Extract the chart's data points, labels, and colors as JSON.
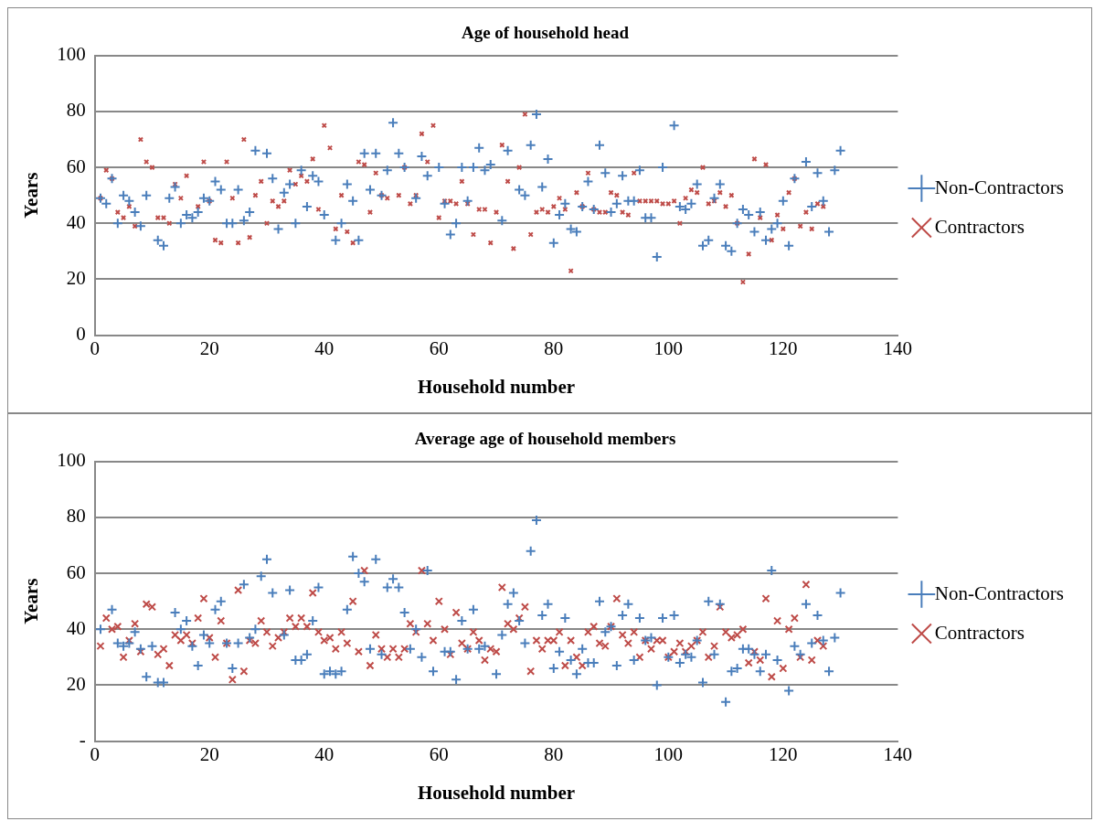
{
  "chart_data": [
    {
      "type": "scatter",
      "title": "Age of household head",
      "xlabel": "Household number",
      "ylabel": "Years",
      "xlim": [
        0,
        140
      ],
      "xticks": [
        0,
        20,
        40,
        60,
        80,
        100,
        120,
        140
      ],
      "ylim": [
        0,
        100
      ],
      "yticks": [
        0,
        20,
        40,
        60,
        80,
        100
      ],
      "grid": "y",
      "legend": "right",
      "series": [
        {
          "name": "Non-Contractors",
          "color": "#4a7ebb",
          "marker": "cross",
          "x": [
            1,
            2,
            3,
            4,
            5,
            6,
            7,
            8,
            9,
            11,
            12,
            13,
            14,
            15,
            16,
            17,
            18,
            19,
            20,
            21,
            22,
            23,
            24,
            25,
            26,
            27,
            28,
            30,
            31,
            32,
            33,
            34,
            35,
            36,
            37,
            38,
            39,
            40,
            42,
            43,
            44,
            45,
            46,
            47,
            48,
            49,
            50,
            51,
            52,
            53,
            54,
            56,
            57,
            58,
            60,
            61,
            62,
            63,
            64,
            65,
            66,
            67,
            68,
            69,
            71,
            72,
            74,
            75,
            76,
            77,
            78,
            79,
            80,
            81,
            82,
            83,
            84,
            85,
            86,
            87,
            88,
            89,
            90,
            91,
            92,
            93,
            94,
            95,
            96,
            97,
            98,
            99,
            101,
            102,
            103,
            104,
            105,
            106,
            107,
            108,
            109,
            110,
            111,
            112,
            113,
            114,
            115,
            116,
            117,
            118,
            119,
            120,
            121,
            122,
            124,
            125,
            126,
            127,
            128,
            129,
            130
          ],
          "values": [
            49,
            47,
            56,
            40,
            50,
            48,
            44,
            39,
            50,
            34,
            32,
            49,
            53,
            40,
            43,
            42,
            44,
            49,
            48,
            55,
            52,
            40,
            40,
            52,
            41,
            44,
            66,
            65,
            56,
            38,
            51,
            54,
            40,
            59,
            46,
            57,
            55,
            43,
            34,
            40,
            54,
            48,
            34,
            65,
            52,
            65,
            50,
            59,
            76,
            65,
            60,
            49,
            64,
            57,
            60,
            47,
            36,
            40,
            60,
            48,
            60,
            67,
            59,
            61,
            41,
            66,
            52,
            50,
            68,
            79,
            53,
            63,
            33,
            43,
            47,
            38,
            37,
            46,
            55,
            45,
            68,
            58,
            44,
            47,
            57,
            48,
            48,
            59,
            42,
            42,
            28,
            60,
            75,
            46,
            45,
            47,
            54,
            32,
            34,
            49,
            54,
            32,
            30,
            40,
            45,
            43,
            37,
            44,
            34,
            38,
            40,
            48,
            32,
            56,
            62,
            46,
            58,
            48,
            37,
            59,
            66
          ]
        },
        {
          "name": "Contractors",
          "color": "#be4b48",
          "marker": "x",
          "x": [
            1,
            2,
            3,
            4,
            5,
            6,
            7,
            8,
            9,
            10,
            11,
            12,
            13,
            14,
            15,
            16,
            18,
            19,
            20,
            21,
            22,
            23,
            24,
            25,
            26,
            27,
            28,
            29,
            30,
            31,
            32,
            33,
            34,
            35,
            36,
            37,
            38,
            39,
            40,
            41,
            42,
            43,
            44,
            45,
            46,
            47,
            48,
            49,
            50,
            51,
            53,
            54,
            55,
            56,
            57,
            58,
            59,
            60,
            61,
            62,
            63,
            64,
            65,
            66,
            67,
            68,
            69,
            70,
            71,
            72,
            73,
            74,
            75,
            76,
            77,
            78,
            79,
            80,
            81,
            82,
            83,
            84,
            85,
            86,
            87,
            88,
            89,
            90,
            91,
            92,
            93,
            94,
            95,
            96,
            97,
            98,
            99,
            100,
            101,
            102,
            103,
            104,
            105,
            106,
            107,
            108,
            109,
            110,
            111,
            112,
            113,
            114,
            115,
            116,
            117,
            118,
            119,
            120,
            121,
            122,
            123,
            124,
            125,
            126,
            127
          ],
          "values": [
            49,
            59,
            56,
            44,
            42,
            46,
            39,
            70,
            62,
            60,
            42,
            42,
            40,
            54,
            49,
            57,
            46,
            62,
            48,
            34,
            33,
            62,
            49,
            33,
            70,
            35,
            50,
            55,
            40,
            48,
            46,
            48,
            59,
            54,
            57,
            55,
            63,
            45,
            75,
            67,
            38,
            50,
            37,
            33,
            62,
            61,
            44,
            58,
            50,
            49,
            50,
            60,
            47,
            50,
            72,
            62,
            75,
            42,
            48,
            48,
            47,
            55,
            47,
            36,
            45,
            45,
            33,
            44,
            68,
            55,
            31,
            60,
            79,
            36,
            44,
            45,
            44,
            46,
            49,
            45,
            23,
            51,
            46,
            58,
            45,
            44,
            44,
            51,
            50,
            44,
            43,
            58,
            48,
            48,
            48,
            48,
            47,
            47,
            48,
            40,
            49,
            52,
            51,
            60,
            47,
            48,
            51,
            46,
            50,
            40,
            19,
            29,
            63,
            42,
            61,
            34,
            43,
            38,
            51,
            56,
            39,
            44,
            38,
            47,
            46
          ]
        }
      ]
    },
    {
      "type": "scatter",
      "title": "Average age of household members",
      "xlabel": "Household number",
      "ylabel": "Years",
      "xlim": [
        0,
        140
      ],
      "xticks": [
        0,
        20,
        40,
        60,
        80,
        100,
        120,
        140
      ],
      "ylim": [
        0,
        100
      ],
      "yticks": [
        {
          "value": 0,
          "label": "-"
        },
        20,
        40,
        60,
        80,
        100
      ],
      "grid": "y",
      "legend": "right",
      "series": [
        {
          "name": "Non-Contractors",
          "color": "#4a7ebb",
          "marker": "cross",
          "x": [
            1,
            3,
            4,
            5,
            6,
            7,
            8,
            9,
            10,
            11,
            12,
            14,
            15,
            16,
            17,
            18,
            19,
            20,
            21,
            22,
            23,
            24,
            25,
            26,
            27,
            28,
            29,
            30,
            31,
            33,
            34,
            35,
            36,
            37,
            38,
            39,
            40,
            41,
            42,
            43,
            44,
            45,
            46,
            47,
            48,
            49,
            50,
            51,
            52,
            53,
            54,
            55,
            56,
            57,
            58,
            59,
            61,
            62,
            63,
            64,
            65,
            66,
            67,
            68,
            70,
            71,
            72,
            73,
            74,
            75,
            76,
            77,
            78,
            79,
            80,
            81,
            82,
            83,
            84,
            85,
            86,
            87,
            88,
            89,
            90,
            91,
            92,
            93,
            94,
            95,
            96,
            97,
            98,
            99,
            100,
            101,
            102,
            103,
            104,
            105,
            106,
            107,
            108,
            109,
            110,
            111,
            112,
            113,
            114,
            115,
            116,
            117,
            118,
            119,
            121,
            122,
            123,
            124,
            125,
            126,
            127,
            128,
            129,
            130
          ],
          "values": [
            40,
            47,
            35,
            34,
            35,
            39,
            33,
            23,
            34,
            21,
            21,
            46,
            40,
            43,
            34,
            27,
            38,
            35,
            47,
            50,
            35,
            26,
            35,
            56,
            37,
            40,
            59,
            65,
            53,
            38,
            54,
            29,
            29,
            31,
            43,
            55,
            24,
            25,
            24,
            25,
            47,
            66,
            60,
            57,
            33,
            65,
            31,
            55,
            58,
            55,
            46,
            33,
            40,
            30,
            61,
            25,
            32,
            32,
            22,
            43,
            33,
            47,
            33,
            34,
            24,
            38,
            49,
            53,
            43,
            35,
            68,
            79,
            45,
            49,
            26,
            32,
            44,
            29,
            24,
            33,
            28,
            28,
            50,
            39,
            41,
            27,
            45,
            49,
            29,
            44,
            36,
            37,
            20,
            44,
            30,
            45,
            28,
            31,
            30,
            36,
            21,
            50,
            31,
            49,
            14,
            25,
            26,
            33,
            33,
            31,
            25,
            31,
            61,
            29,
            18,
            34,
            31,
            49,
            35,
            45,
            36,
            25,
            37,
            53
          ]
        },
        {
          "name": "Contractors",
          "color": "#be4b48",
          "marker": "x",
          "x": [
            1,
            2,
            3,
            4,
            5,
            6,
            7,
            8,
            9,
            10,
            11,
            12,
            13,
            14,
            15,
            16,
            17,
            18,
            19,
            20,
            21,
            22,
            23,
            24,
            25,
            26,
            27,
            28,
            29,
            30,
            31,
            32,
            33,
            34,
            35,
            36,
            37,
            38,
            39,
            40,
            41,
            42,
            43,
            44,
            45,
            46,
            47,
            48,
            49,
            50,
            51,
            52,
            53,
            54,
            55,
            56,
            57,
            58,
            59,
            60,
            61,
            62,
            63,
            64,
            65,
            66,
            67,
            68,
            69,
            70,
            71,
            72,
            73,
            74,
            75,
            76,
            77,
            78,
            79,
            80,
            81,
            82,
            83,
            84,
            85,
            86,
            87,
            88,
            89,
            90,
            91,
            92,
            93,
            94,
            95,
            96,
            97,
            98,
            99,
            100,
            101,
            102,
            103,
            104,
            105,
            106,
            107,
            108,
            109,
            110,
            111,
            112,
            113,
            114,
            115,
            116,
            117,
            118,
            119,
            120,
            121,
            122,
            123,
            124,
            125,
            126,
            127
          ],
          "values": [
            34,
            44,
            40,
            41,
            30,
            36,
            42,
            32,
            49,
            48,
            31,
            33,
            27,
            38,
            36,
            38,
            35,
            44,
            51,
            37,
            30,
            43,
            35,
            22,
            54,
            25,
            36,
            35,
            43,
            39,
            34,
            37,
            39,
            44,
            41,
            44,
            41,
            53,
            39,
            36,
            37,
            33,
            39,
            35,
            50,
            32,
            61,
            27,
            38,
            33,
            30,
            33,
            30,
            33,
            42,
            39,
            61,
            42,
            36,
            50,
            40,
            31,
            46,
            35,
            33,
            39,
            36,
            29,
            33,
            32,
            55,
            42,
            40,
            44,
            48,
            25,
            36,
            33,
            36,
            36,
            39,
            27,
            36,
            30,
            27,
            39,
            41,
            35,
            34,
            41,
            51,
            38,
            35,
            39,
            30,
            36,
            33,
            36,
            36,
            30,
            32,
            35,
            32,
            34,
            36,
            39,
            30,
            34,
            48,
            39,
            37,
            38,
            40,
            28,
            32,
            29,
            51,
            23,
            43,
            26,
            40,
            44,
            30,
            56,
            29,
            36,
            34
          ]
        }
      ]
    }
  ]
}
